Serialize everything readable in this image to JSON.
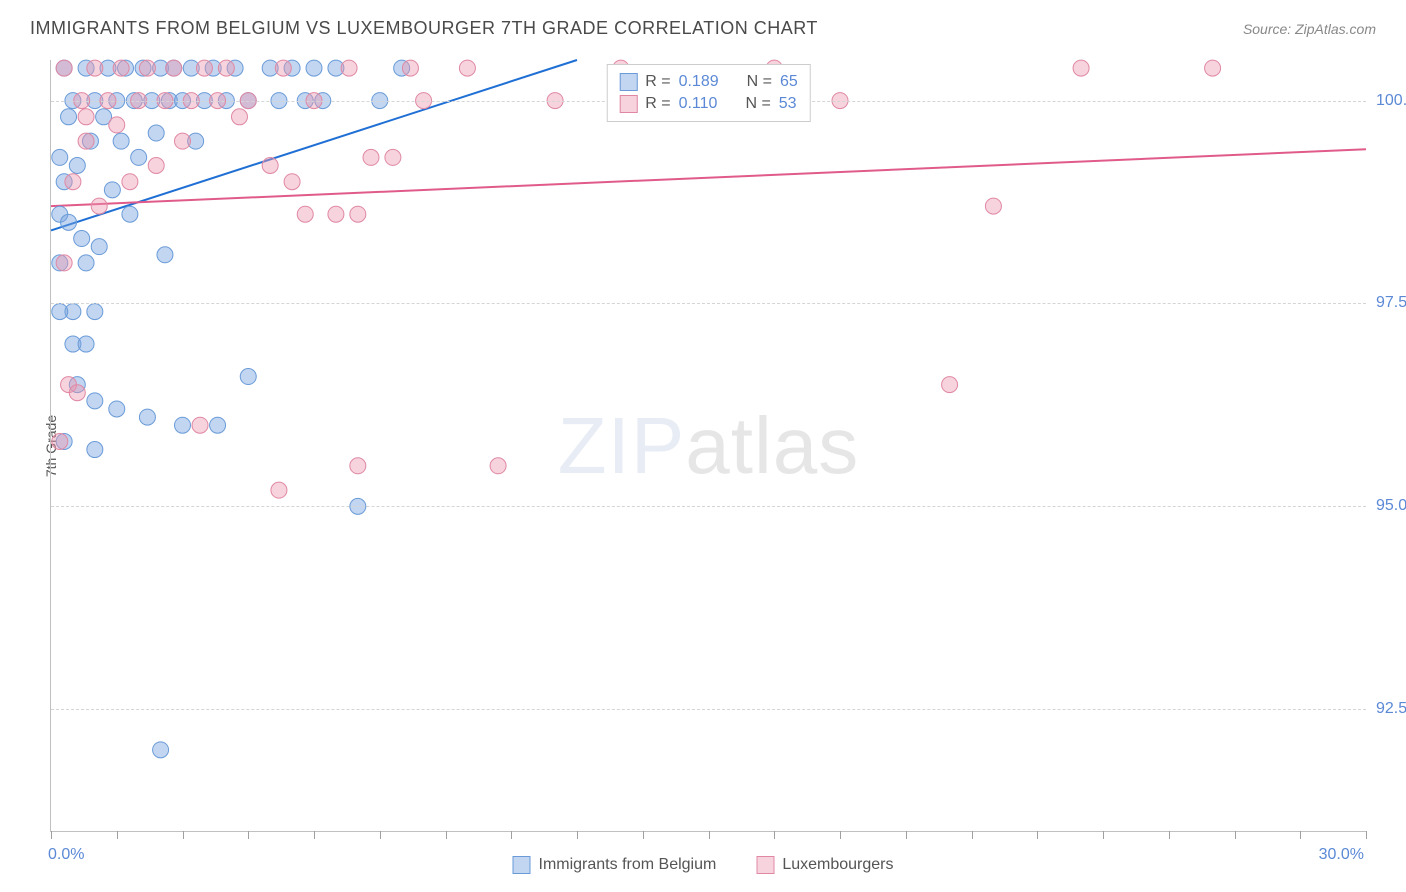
{
  "title": "IMMIGRANTS FROM BELGIUM VS LUXEMBOURGER 7TH GRADE CORRELATION CHART",
  "source": "Source: ZipAtlas.com",
  "watermark_zip": "ZIP",
  "watermark_atlas": "atlas",
  "ylabel": "7th Grade",
  "chart": {
    "type": "scatter",
    "xlim": [
      0,
      30
    ],
    "ylim": [
      91,
      100.5
    ],
    "xticks_minor_step": 1.5,
    "xticks_major": [
      0,
      30
    ],
    "xtick_labels": [
      "0.0%",
      "30.0%"
    ],
    "yticks": [
      92.5,
      95.0,
      97.5,
      100.0
    ],
    "ytick_labels": [
      "92.5%",
      "95.0%",
      "97.5%",
      "100.0%"
    ],
    "grid_color": "#d5d5d5",
    "axis_color": "#c0c0c0",
    "background_color": "#ffffff",
    "label_color": "#5b89d6",
    "series": [
      {
        "name": "Immigrants from Belgium",
        "color_fill": "rgba(120,165,225,0.45)",
        "color_stroke": "#6a9bd8",
        "marker_radius": 8,
        "R": 0.189,
        "N": 65,
        "trend": {
          "x1": 0,
          "y1": 98.4,
          "x2": 12,
          "y2": 100.5,
          "color": "#1f6fd4",
          "width": 2
        },
        "points": [
          [
            0.2,
            98.6
          ],
          [
            0.3,
            99.0
          ],
          [
            0.4,
            98.5
          ],
          [
            0.5,
            100.0
          ],
          [
            0.5,
            97.4
          ],
          [
            0.6,
            99.2
          ],
          [
            0.7,
            98.3
          ],
          [
            0.8,
            100.4
          ],
          [
            0.8,
            98.0
          ],
          [
            0.9,
            99.5
          ],
          [
            1.0,
            100.0
          ],
          [
            1.0,
            97.4
          ],
          [
            1.0,
            95.7
          ],
          [
            1.1,
            98.2
          ],
          [
            1.2,
            99.8
          ],
          [
            1.3,
            100.4
          ],
          [
            1.4,
            98.9
          ],
          [
            1.5,
            100.0
          ],
          [
            1.5,
            96.2
          ],
          [
            1.6,
            99.5
          ],
          [
            1.7,
            100.4
          ],
          [
            1.8,
            98.6
          ],
          [
            1.9,
            100.0
          ],
          [
            2.0,
            99.3
          ],
          [
            2.1,
            100.4
          ],
          [
            2.2,
            96.1
          ],
          [
            2.3,
            100.0
          ],
          [
            2.4,
            99.6
          ],
          [
            2.5,
            100.4
          ],
          [
            2.6,
            98.1
          ],
          [
            2.7,
            100.0
          ],
          [
            2.8,
            100.4
          ],
          [
            3.0,
            100.0
          ],
          [
            3.0,
            96.0
          ],
          [
            3.2,
            100.4
          ],
          [
            3.3,
            99.5
          ],
          [
            3.5,
            100.0
          ],
          [
            3.7,
            100.4
          ],
          [
            3.8,
            96.0
          ],
          [
            4.0,
            100.0
          ],
          [
            4.2,
            100.4
          ],
          [
            4.5,
            100.0
          ],
          [
            4.5,
            96.6
          ],
          [
            5.0,
            100.4
          ],
          [
            5.2,
            100.0
          ],
          [
            5.5,
            100.4
          ],
          [
            5.8,
            100.0
          ],
          [
            6.0,
            100.4
          ],
          [
            6.2,
            100.0
          ],
          [
            6.5,
            100.4
          ],
          [
            7.0,
            95.0
          ],
          [
            7.5,
            100.0
          ],
          [
            8.0,
            100.4
          ],
          [
            2.5,
            92.0
          ],
          [
            1.0,
            96.3
          ],
          [
            0.5,
            97.0
          ],
          [
            0.3,
            95.8
          ],
          [
            0.6,
            96.5
          ],
          [
            0.4,
            99.8
          ],
          [
            0.2,
            99.3
          ],
          [
            0.3,
            100.4
          ],
          [
            0.8,
            97.0
          ],
          [
            0.2,
            97.4
          ],
          [
            0.2,
            98.0
          ],
          [
            14.0,
            100.0
          ]
        ]
      },
      {
        "name": "Luxembourgers",
        "color_fill": "rgba(235,150,175,0.42)",
        "color_stroke": "#e088a3",
        "marker_radius": 8,
        "R": 0.11,
        "N": 53,
        "trend": {
          "x1": 0,
          "y1": 98.7,
          "x2": 30,
          "y2": 99.4,
          "color": "#e05b8a",
          "width": 2
        },
        "points": [
          [
            0.3,
            100.4
          ],
          [
            0.5,
            99.0
          ],
          [
            0.7,
            100.0
          ],
          [
            0.8,
            99.5
          ],
          [
            1.0,
            100.4
          ],
          [
            1.1,
            98.7
          ],
          [
            1.3,
            100.0
          ],
          [
            1.5,
            99.7
          ],
          [
            1.6,
            100.4
          ],
          [
            1.8,
            99.0
          ],
          [
            2.0,
            100.0
          ],
          [
            2.2,
            100.4
          ],
          [
            2.4,
            99.2
          ],
          [
            2.6,
            100.0
          ],
          [
            2.8,
            100.4
          ],
          [
            3.0,
            99.5
          ],
          [
            3.2,
            100.0
          ],
          [
            3.4,
            96.0
          ],
          [
            3.5,
            100.4
          ],
          [
            3.8,
            100.0
          ],
          [
            4.0,
            100.4
          ],
          [
            4.3,
            99.8
          ],
          [
            4.5,
            100.0
          ],
          [
            5.0,
            99.2
          ],
          [
            5.3,
            100.4
          ],
          [
            5.5,
            99.0
          ],
          [
            5.8,
            98.6
          ],
          [
            6.0,
            100.0
          ],
          [
            6.5,
            98.6
          ],
          [
            6.8,
            100.4
          ],
          [
            7.0,
            98.6
          ],
          [
            7.3,
            99.3
          ],
          [
            7.8,
            99.3
          ],
          [
            8.2,
            100.4
          ],
          [
            8.5,
            100.0
          ],
          [
            9.5,
            100.4
          ],
          [
            10.2,
            95.5
          ],
          [
            11.5,
            100.0
          ],
          [
            13.0,
            100.4
          ],
          [
            14.0,
            100.0
          ],
          [
            16.5,
            100.4
          ],
          [
            18.0,
            100.0
          ],
          [
            20.5,
            96.5
          ],
          [
            21.5,
            98.7
          ],
          [
            23.5,
            100.4
          ],
          [
            26.5,
            100.4
          ],
          [
            7.0,
            95.5
          ],
          [
            0.4,
            96.5
          ],
          [
            0.6,
            96.4
          ],
          [
            0.3,
            98.0
          ],
          [
            0.8,
            99.8
          ],
          [
            0.2,
            95.8
          ],
          [
            5.2,
            95.2
          ]
        ]
      }
    ]
  },
  "legend_top": {
    "rows": [
      {
        "swatch_fill": "rgba(120,165,225,0.45)",
        "swatch_stroke": "#6a9bd8",
        "R_label": "R =",
        "R": "0.189",
        "N_label": "N =",
        "N": "65"
      },
      {
        "swatch_fill": "rgba(235,150,175,0.42)",
        "swatch_stroke": "#e088a3",
        "R_label": "R =",
        "R": "0.110",
        "N_label": "N =",
        "N": "53"
      }
    ]
  },
  "legend_bottom": {
    "items": [
      {
        "swatch_fill": "rgba(120,165,225,0.45)",
        "swatch_stroke": "#6a9bd8",
        "label": "Immigrants from Belgium"
      },
      {
        "swatch_fill": "rgba(235,150,175,0.42)",
        "swatch_stroke": "#e088a3",
        "label": "Luxembourgers"
      }
    ]
  }
}
